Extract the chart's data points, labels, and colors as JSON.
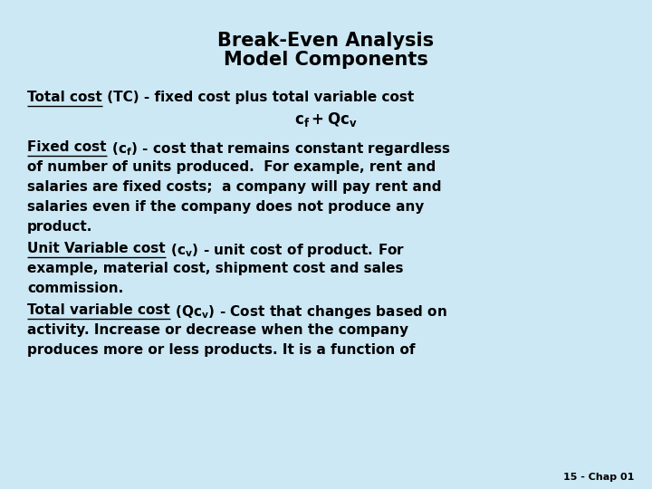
{
  "title_line1": "Break-Even Analysis",
  "title_line2": "Model Components",
  "background_color": "#cce8f5",
  "text_color": "#000000",
  "title_fontsize": 15,
  "body_fontsize": 11,
  "footer_text": "15 - Chap 01",
  "footer_fontsize": 8
}
